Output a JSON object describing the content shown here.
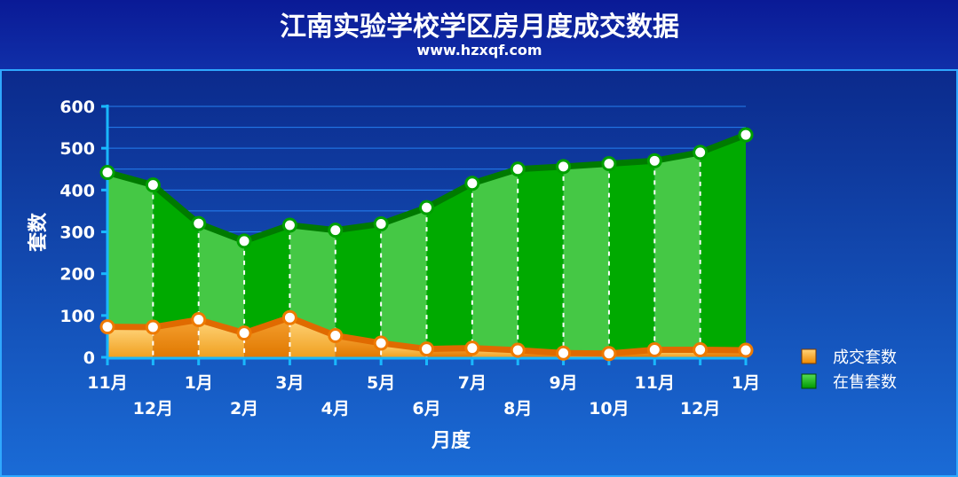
{
  "header": {
    "title": "江南实验学校学区房月度成交数据",
    "subtitle": "www.hzxqf.com"
  },
  "colors": {
    "background": "#06106e",
    "panel_top": "#0b2a8c",
    "panel_bottom": "#1a6bd6",
    "panel_border": "#2fa8ff",
    "axis": "#19b8ff",
    "gridline": "#2a8cff",
    "sale_band_light": "#45c845",
    "sale_band_dark": "#00aa00",
    "sale_line": "#007a00",
    "deal_light": "#ffcc66",
    "deal_dark": "#ee8a00",
    "deal_line": "#e06a00"
  },
  "chart_data": {
    "type": "area",
    "categories": [
      "11月",
      "12月",
      "1月",
      "2月",
      "3月",
      "4月",
      "5月",
      "6月",
      "7月",
      "8月",
      "9月",
      "10月",
      "11月",
      "12月",
      "1月"
    ],
    "series": [
      {
        "name": "成交套数",
        "color": "#ee8a00",
        "values": [
          73,
          72,
          90,
          58,
          95,
          52,
          34,
          20,
          22,
          17,
          10,
          9,
          18,
          18,
          17
        ]
      },
      {
        "name": "在售套数",
        "color": "#00aa00",
        "values": [
          442,
          412,
          320,
          278,
          316,
          304,
          319,
          358,
          416,
          450,
          456,
          463,
          470,
          490,
          532
        ]
      }
    ],
    "xlabel": "月度",
    "ylabel": "套数",
    "ylim": [
      0,
      600
    ],
    "yticks": [
      0,
      100,
      200,
      300,
      400,
      500,
      600
    ],
    "grid": true,
    "legend": "right"
  }
}
